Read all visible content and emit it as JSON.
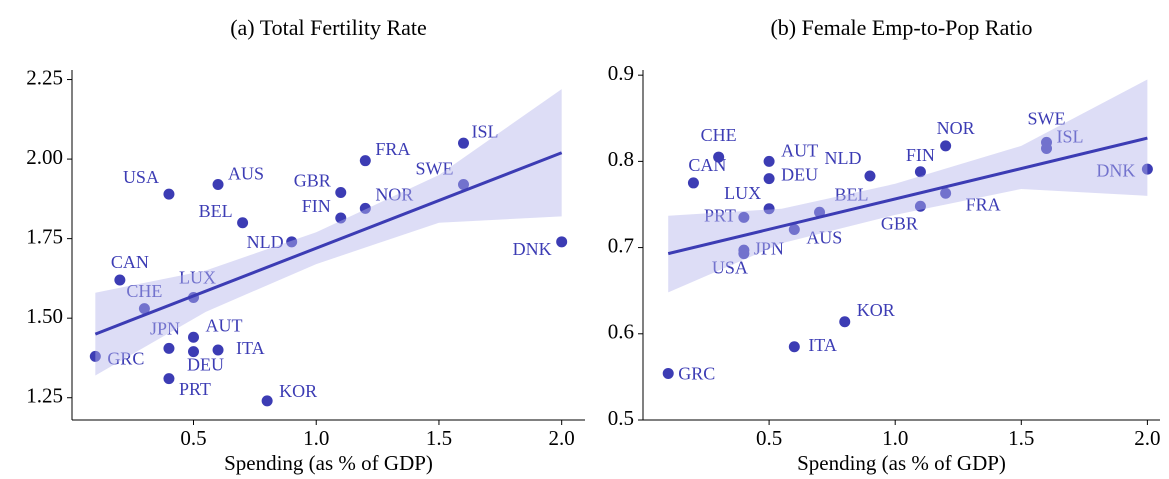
{
  "chart_data": [
    {
      "type": "scatter",
      "title": "(a) Total Fertility Rate",
      "x_label": "Spending (as % of GDP)",
      "color": "#3c3cb4",
      "band_color": "#b4b4ec",
      "xlim": [
        0.005,
        2.095
      ],
      "ylim": [
        1.18,
        2.28
      ],
      "xticks": [
        0.5,
        {
          "value": 1,
          "label": "1.0"
        },
        1.5,
        {
          "value": 2,
          "label": "2.0"
        }
      ],
      "yticks": [
        1.25,
        {
          "value": 1.5,
          "label": "1.50"
        },
        1.75,
        {
          "value": 2,
          "label": "2.00"
        },
        2.25
      ],
      "points": {
        "labels": [
          "USA",
          "AUS",
          "BEL",
          "GBR",
          "FRA",
          "ISL",
          "SWE",
          "NOR",
          "FIN",
          "NLD",
          "DNK",
          "CAN",
          "CHE",
          "LUX",
          "JPN",
          "AUT",
          "DEU",
          "ITA",
          "GRC",
          "PRT",
          "KOR"
        ],
        "x": [
          0.4,
          0.6,
          0.7,
          1.1,
          1.2,
          1.6,
          1.6,
          1.2,
          1.1,
          0.9,
          2.0,
          0.2,
          0.3,
          0.5,
          0.4,
          0.5,
          0.5,
          0.6,
          0.1,
          0.4,
          0.8
        ],
        "y": [
          1.89,
          1.92,
          1.8,
          1.895,
          1.995,
          2.05,
          1.92,
          1.845,
          1.815,
          1.74,
          1.74,
          1.62,
          1.53,
          1.565,
          1.405,
          1.44,
          1.395,
          1.4,
          1.38,
          1.31,
          1.24
        ]
      },
      "fit": {
        "x": [
          0.1,
          2.0
        ],
        "y": [
          1.45,
          2.02
        ]
      },
      "band": {
        "x": [
          0.1,
          0.55,
          1.0,
          1.5,
          2.0
        ],
        "lower": [
          1.32,
          1.52,
          1.67,
          1.8,
          1.82
        ],
        "upper": [
          1.58,
          1.65,
          1.77,
          1.95,
          2.22
        ]
      }
    },
    {
      "type": "scatter",
      "title": "(b) Female Emp-to-Pop Ratio",
      "x_label": "Spending (as % of GDP)",
      "color": "#3c3cb4",
      "band_color": "#b4b4ec",
      "xlim": [
        0.0,
        2.05
      ],
      "ylim": [
        0.5,
        0.906
      ],
      "xticks": [
        0.5,
        {
          "value": 1,
          "label": "1.0"
        },
        1.5,
        {
          "value": 2,
          "label": "2.0"
        }
      ],
      "yticks": [
        0.5,
        0.6,
        0.7,
        0.8,
        0.9
      ],
      "points": {
        "labels": [
          "CHE",
          "CAN",
          "AUT",
          "DEU",
          "NOR",
          "NLD",
          "FIN",
          "SWE",
          "ISL",
          "DNK",
          "LUX",
          "BEL",
          "FRA",
          "GBR",
          "PRT",
          "AUS",
          "JPN",
          "USA",
          "KOR",
          "ITA",
          "GRC"
        ],
        "x": [
          0.3,
          0.2,
          0.5,
          0.5,
          1.2,
          0.9,
          1.1,
          1.6,
          1.6,
          2.0,
          0.5,
          0.7,
          1.2,
          1.1,
          0.4,
          0.6,
          0.4,
          0.4,
          0.8,
          0.6,
          0.1
        ],
        "y": [
          0.805,
          0.775,
          0.8,
          0.78,
          0.818,
          0.783,
          0.788,
          0.822,
          0.815,
          0.791,
          0.745,
          0.741,
          0.763,
          0.748,
          0.735,
          0.721,
          0.697,
          0.693,
          0.614,
          0.585,
          0.554
        ]
      },
      "fit": {
        "x": [
          0.1,
          2.0
        ],
        "y": [
          0.693,
          0.827
        ]
      },
      "band": {
        "x": [
          0.1,
          0.55,
          1.0,
          1.5,
          2.0
        ],
        "lower": [
          0.648,
          0.705,
          0.738,
          0.768,
          0.76
        ],
        "upper": [
          0.737,
          0.745,
          0.774,
          0.818,
          0.895
        ]
      }
    }
  ]
}
